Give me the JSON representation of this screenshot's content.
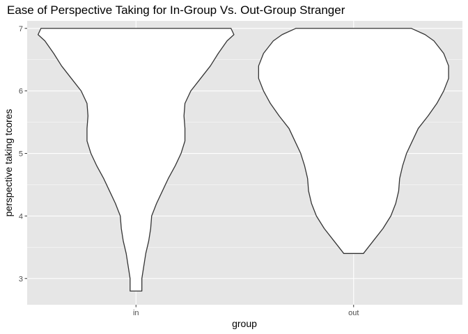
{
  "chart_data": {
    "type": "violin",
    "title": "Ease of Perspective Taking for In-Group Vs. Out-Group Stranger",
    "xlabel": "group",
    "ylabel": "perspective taking tcores",
    "categories": [
      "in",
      "out"
    ],
    "ylim": [
      2.58,
      7.12
    ],
    "yticks": [
      3,
      4,
      5,
      6,
      7
    ],
    "grid": true,
    "colors": {
      "panel": "#e6e6e6",
      "grid": "#ffffff",
      "violin_fill": "#ffffff",
      "violin_outline": "#333333"
    },
    "violins": [
      {
        "category": "in",
        "min": 2.8,
        "max": 7,
        "density_profile": [
          {
            "y": 7.0,
            "halfwidth": 0.97
          },
          {
            "y": 6.9,
            "halfwidth": 1.0
          },
          {
            "y": 6.8,
            "halfwidth": 0.93
          },
          {
            "y": 6.6,
            "halfwidth": 0.84
          },
          {
            "y": 6.4,
            "halfwidth": 0.76
          },
          {
            "y": 6.2,
            "halfwidth": 0.66
          },
          {
            "y": 6.0,
            "halfwidth": 0.56
          },
          {
            "y": 5.8,
            "halfwidth": 0.5
          },
          {
            "y": 5.6,
            "halfwidth": 0.49
          },
          {
            "y": 5.4,
            "halfwidth": 0.5
          },
          {
            "y": 5.2,
            "halfwidth": 0.5
          },
          {
            "y": 5.0,
            "halfwidth": 0.46
          },
          {
            "y": 4.8,
            "halfwidth": 0.4
          },
          {
            "y": 4.6,
            "halfwidth": 0.33
          },
          {
            "y": 4.4,
            "halfwidth": 0.27
          },
          {
            "y": 4.2,
            "halfwidth": 0.21
          },
          {
            "y": 4.0,
            "halfwidth": 0.16
          },
          {
            "y": 3.8,
            "halfwidth": 0.15
          },
          {
            "y": 3.6,
            "halfwidth": 0.13
          },
          {
            "y": 3.4,
            "halfwidth": 0.1
          },
          {
            "y": 3.2,
            "halfwidth": 0.08
          },
          {
            "y": 3.0,
            "halfwidth": 0.06
          },
          {
            "y": 2.8,
            "halfwidth": 0.06
          }
        ]
      },
      {
        "category": "out",
        "min": 3.4,
        "max": 7,
        "density_profile": [
          {
            "y": 7.0,
            "halfwidth": 0.59
          },
          {
            "y": 6.9,
            "halfwidth": 0.73
          },
          {
            "y": 6.8,
            "halfwidth": 0.82
          },
          {
            "y": 6.6,
            "halfwidth": 0.92
          },
          {
            "y": 6.4,
            "halfwidth": 0.97
          },
          {
            "y": 6.2,
            "halfwidth": 0.97
          },
          {
            "y": 6.0,
            "halfwidth": 0.92
          },
          {
            "y": 5.8,
            "halfwidth": 0.85
          },
          {
            "y": 5.6,
            "halfwidth": 0.76
          },
          {
            "y": 5.4,
            "halfwidth": 0.66
          },
          {
            "y": 5.2,
            "halfwidth": 0.6
          },
          {
            "y": 5.0,
            "halfwidth": 0.54
          },
          {
            "y": 4.8,
            "halfwidth": 0.5
          },
          {
            "y": 4.6,
            "halfwidth": 0.47
          },
          {
            "y": 4.4,
            "halfwidth": 0.46
          },
          {
            "y": 4.2,
            "halfwidth": 0.43
          },
          {
            "y": 4.0,
            "halfwidth": 0.38
          },
          {
            "y": 3.8,
            "halfwidth": 0.3
          },
          {
            "y": 3.6,
            "halfwidth": 0.2
          },
          {
            "y": 3.4,
            "halfwidth": 0.1
          }
        ]
      }
    ]
  }
}
